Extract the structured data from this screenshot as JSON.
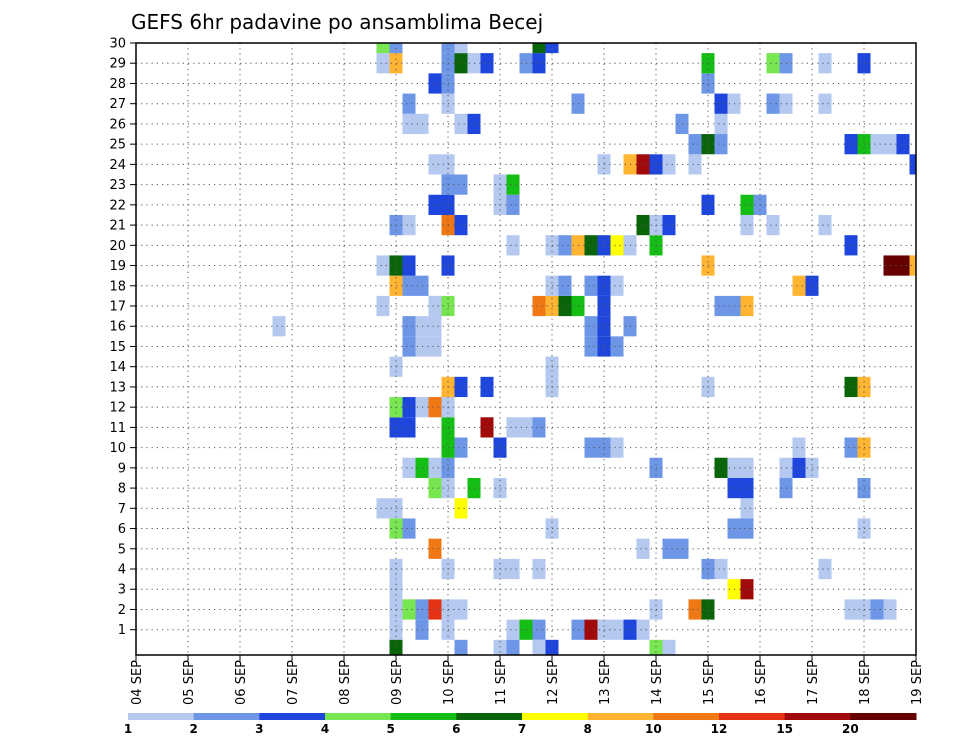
{
  "chart_data": {
    "type": "heatmap",
    "title": "GEFS 6hr padavine po ansamblima Becej",
    "xlabel": "",
    "ylabel": "",
    "x_tick_labels": [
      "04 SEP",
      "05 SEP",
      "06 SEP",
      "07 SEP",
      "08 SEP",
      "09 SEP",
      "10 SEP",
      "11 SEP",
      "12 SEP",
      "13 SEP",
      "14 SEP",
      "15 SEP",
      "16 SEP",
      "17 SEP",
      "18 SEP",
      "19 SEP"
    ],
    "y_tick_labels": [
      "1",
      "2",
      "3",
      "4",
      "5",
      "6",
      "7",
      "8",
      "9",
      "10",
      "11",
      "12",
      "13",
      "14",
      "15",
      "16",
      "17",
      "18",
      "19",
      "20",
      "21",
      "22",
      "23",
      "24",
      "25",
      "26",
      "27",
      "28",
      "29",
      "30"
    ],
    "xlim": [
      0,
      60
    ],
    "ylim": [
      0,
      30
    ],
    "grid": true,
    "legend": {
      "placement": "bottom",
      "thresholds": [
        "1",
        "2",
        "3",
        "4",
        "5",
        "6",
        "7",
        "8",
        "10",
        "12",
        "15",
        "20"
      ],
      "colors": [
        "#b4c8f0",
        "#6e96e6",
        "#1e46dc",
        "#78e650",
        "#14be14",
        "#0a640a",
        "#ffff00",
        "#ffb432",
        "#f07814",
        "#e63214",
        "#a00a0a",
        "#640000"
      ]
    },
    "cells": [
      [
        20,
        1,
        1
      ],
      [
        22,
        1,
        2
      ],
      [
        24,
        1,
        1
      ],
      [
        29,
        1,
        1
      ],
      [
        30,
        1,
        5
      ],
      [
        31,
        1,
        2
      ],
      [
        34,
        1,
        2
      ],
      [
        35,
        1,
        11
      ],
      [
        36,
        1,
        1
      ],
      [
        37,
        1,
        1
      ],
      [
        38,
        1,
        3
      ],
      [
        39,
        1,
        1
      ],
      [
        20,
        2,
        1
      ],
      [
        21,
        2,
        4
      ],
      [
        22,
        2,
        2
      ],
      [
        23,
        2,
        10
      ],
      [
        24,
        2,
        1
      ],
      [
        25,
        2,
        1
      ],
      [
        40,
        2,
        1
      ],
      [
        43,
        2,
        9
      ],
      [
        44,
        2,
        6
      ],
      [
        55,
        2,
        1
      ],
      [
        56,
        2,
        1
      ],
      [
        57,
        2,
        2
      ],
      [
        58,
        2,
        1
      ],
      [
        20,
        3,
        1
      ],
      [
        46,
        3,
        7
      ],
      [
        47,
        3,
        11
      ],
      [
        20,
        4,
        1
      ],
      [
        24,
        4,
        1
      ],
      [
        28,
        4,
        1
      ],
      [
        29,
        4,
        1
      ],
      [
        31,
        4,
        1
      ],
      [
        44,
        4,
        2
      ],
      [
        45,
        4,
        1
      ],
      [
        53,
        4,
        1
      ],
      [
        23,
        5,
        9
      ],
      [
        39,
        5,
        1
      ],
      [
        41,
        5,
        2
      ],
      [
        42,
        5,
        2
      ],
      [
        20,
        6,
        4
      ],
      [
        21,
        6,
        2
      ],
      [
        32,
        6,
        1
      ],
      [
        46,
        6,
        2
      ],
      [
        47,
        6,
        2
      ],
      [
        56,
        6,
        1
      ],
      [
        19,
        7,
        1
      ],
      [
        20,
        7,
        1
      ],
      [
        25,
        7,
        7
      ],
      [
        47,
        7,
        1
      ],
      [
        23,
        8,
        4
      ],
      [
        24,
        8,
        1
      ],
      [
        26,
        8,
        5
      ],
      [
        28,
        8,
        1
      ],
      [
        46,
        8,
        3
      ],
      [
        47,
        8,
        3
      ],
      [
        50,
        8,
        2
      ],
      [
        56,
        8,
        2
      ],
      [
        21,
        9,
        1
      ],
      [
        22,
        9,
        5
      ],
      [
        23,
        9,
        1
      ],
      [
        24,
        9,
        2
      ],
      [
        40,
        9,
        2
      ],
      [
        45,
        9,
        6
      ],
      [
        46,
        9,
        1
      ],
      [
        47,
        9,
        1
      ],
      [
        50,
        9,
        1
      ],
      [
        51,
        9,
        3
      ],
      [
        52,
        9,
        1
      ],
      [
        24,
        10,
        5
      ],
      [
        25,
        10,
        2
      ],
      [
        28,
        10,
        3
      ],
      [
        35,
        10,
        2
      ],
      [
        36,
        10,
        2
      ],
      [
        37,
        10,
        1
      ],
      [
        51,
        10,
        1
      ],
      [
        55,
        10,
        2
      ],
      [
        56,
        10,
        8
      ],
      [
        20,
        11,
        3
      ],
      [
        21,
        11,
        3
      ],
      [
        24,
        11,
        5
      ],
      [
        27,
        11,
        11
      ],
      [
        29,
        11,
        1
      ],
      [
        30,
        11,
        1
      ],
      [
        31,
        11,
        2
      ],
      [
        20,
        12,
        4
      ],
      [
        21,
        12,
        3
      ],
      [
        22,
        12,
        1
      ],
      [
        23,
        12,
        9
      ],
      [
        24,
        12,
        1
      ],
      [
        24,
        13,
        8
      ],
      [
        25,
        13,
        3
      ],
      [
        27,
        13,
        3
      ],
      [
        32,
        13,
        1
      ],
      [
        44,
        13,
        1
      ],
      [
        55,
        13,
        6
      ],
      [
        56,
        13,
        8
      ],
      [
        20,
        14,
        1
      ],
      [
        32,
        14,
        1
      ],
      [
        21,
        15,
        2
      ],
      [
        22,
        15,
        1
      ],
      [
        23,
        15,
        1
      ],
      [
        35,
        15,
        2
      ],
      [
        36,
        15,
        3
      ],
      [
        37,
        15,
        2
      ],
      [
        11,
        16,
        1
      ],
      [
        21,
        16,
        2
      ],
      [
        22,
        16,
        1
      ],
      [
        23,
        16,
        1
      ],
      [
        35,
        16,
        2
      ],
      [
        36,
        16,
        3
      ],
      [
        38,
        16,
        2
      ],
      [
        19,
        17,
        1
      ],
      [
        23,
        17,
        1
      ],
      [
        24,
        17,
        4
      ],
      [
        31,
        17,
        9
      ],
      [
        32,
        17,
        8
      ],
      [
        33,
        17,
        6
      ],
      [
        34,
        17,
        5
      ],
      [
        36,
        17,
        3
      ],
      [
        45,
        17,
        2
      ],
      [
        46,
        17,
        2
      ],
      [
        47,
        17,
        8
      ],
      [
        20,
        18,
        8
      ],
      [
        21,
        18,
        2
      ],
      [
        22,
        18,
        2
      ],
      [
        32,
        18,
        1
      ],
      [
        33,
        18,
        2
      ],
      [
        35,
        18,
        2
      ],
      [
        36,
        18,
        3
      ],
      [
        37,
        18,
        1
      ],
      [
        51,
        18,
        8
      ],
      [
        52,
        18,
        3
      ],
      [
        19,
        19,
        1
      ],
      [
        20,
        19,
        6
      ],
      [
        21,
        19,
        3
      ],
      [
        24,
        19,
        3
      ],
      [
        44,
        19,
        8
      ],
      [
        58,
        19,
        12
      ],
      [
        59,
        19,
        12
      ],
      [
        60,
        19,
        8
      ],
      [
        29,
        20,
        1
      ],
      [
        32,
        20,
        1
      ],
      [
        33,
        20,
        2
      ],
      [
        34,
        20,
        8
      ],
      [
        35,
        20,
        6
      ],
      [
        36,
        20,
        3
      ],
      [
        37,
        20,
        7
      ],
      [
        38,
        20,
        1
      ],
      [
        40,
        20,
        5
      ],
      [
        55,
        20,
        3
      ],
      [
        20,
        21,
        2
      ],
      [
        21,
        21,
        1
      ],
      [
        24,
        21,
        9
      ],
      [
        25,
        21,
        3
      ],
      [
        39,
        21,
        6
      ],
      [
        40,
        21,
        1
      ],
      [
        41,
        21,
        3
      ],
      [
        47,
        21,
        1
      ],
      [
        49,
        21,
        1
      ],
      [
        53,
        21,
        1
      ],
      [
        23,
        22,
        3
      ],
      [
        24,
        22,
        3
      ],
      [
        28,
        22,
        1
      ],
      [
        29,
        22,
        2
      ],
      [
        44,
        22,
        3
      ],
      [
        47,
        22,
        5
      ],
      [
        48,
        22,
        2
      ],
      [
        24,
        23,
        2
      ],
      [
        25,
        23,
        2
      ],
      [
        28,
        23,
        1
      ],
      [
        29,
        23,
        5
      ],
      [
        23,
        24,
        1
      ],
      [
        24,
        24,
        1
      ],
      [
        36,
        24,
        1
      ],
      [
        38,
        24,
        8
      ],
      [
        39,
        24,
        11
      ],
      [
        40,
        24,
        3
      ],
      [
        41,
        24,
        1
      ],
      [
        43,
        24,
        1
      ],
      [
        60,
        24,
        3
      ],
      [
        43,
        25,
        2
      ],
      [
        44,
        25,
        6
      ],
      [
        45,
        25,
        2
      ],
      [
        55,
        25,
        3
      ],
      [
        56,
        25,
        5
      ],
      [
        57,
        25,
        1
      ],
      [
        58,
        25,
        1
      ],
      [
        59,
        25,
        3
      ],
      [
        21,
        26,
        1
      ],
      [
        22,
        26,
        1
      ],
      [
        25,
        26,
        1
      ],
      [
        26,
        26,
        3
      ],
      [
        42,
        26,
        2
      ],
      [
        45,
        26,
        1
      ],
      [
        21,
        27,
        2
      ],
      [
        24,
        27,
        1
      ],
      [
        34,
        27,
        2
      ],
      [
        45,
        27,
        3
      ],
      [
        46,
        27,
        1
      ],
      [
        49,
        27,
        2
      ],
      [
        50,
        27,
        1
      ],
      [
        53,
        27,
        1
      ],
      [
        23,
        28,
        3
      ],
      [
        24,
        28,
        2
      ],
      [
        44,
        28,
        2
      ],
      [
        19,
        29,
        1
      ],
      [
        20,
        29,
        8
      ],
      [
        24,
        29,
        2
      ],
      [
        25,
        29,
        6
      ],
      [
        26,
        29,
        1
      ],
      [
        27,
        29,
        3
      ],
      [
        30,
        29,
        2
      ],
      [
        31,
        29,
        3
      ],
      [
        44,
        29,
        5
      ],
      [
        49,
        29,
        4
      ],
      [
        50,
        29,
        2
      ],
      [
        53,
        29,
        1
      ],
      [
        56,
        29,
        3
      ],
      [
        19,
        30,
        4
      ],
      [
        20,
        30,
        2
      ],
      [
        24,
        30,
        2
      ],
      [
        25,
        30,
        1
      ],
      [
        31,
        30,
        6
      ],
      [
        32,
        30,
        3
      ],
      [
        20,
        0,
        6
      ],
      [
        25,
        0,
        2
      ],
      [
        28,
        0,
        1
      ],
      [
        29,
        0,
        2
      ],
      [
        31,
        0,
        1
      ],
      [
        32,
        0,
        3
      ],
      [
        40,
        0,
        4
      ],
      [
        41,
        0,
        1
      ]
    ]
  }
}
